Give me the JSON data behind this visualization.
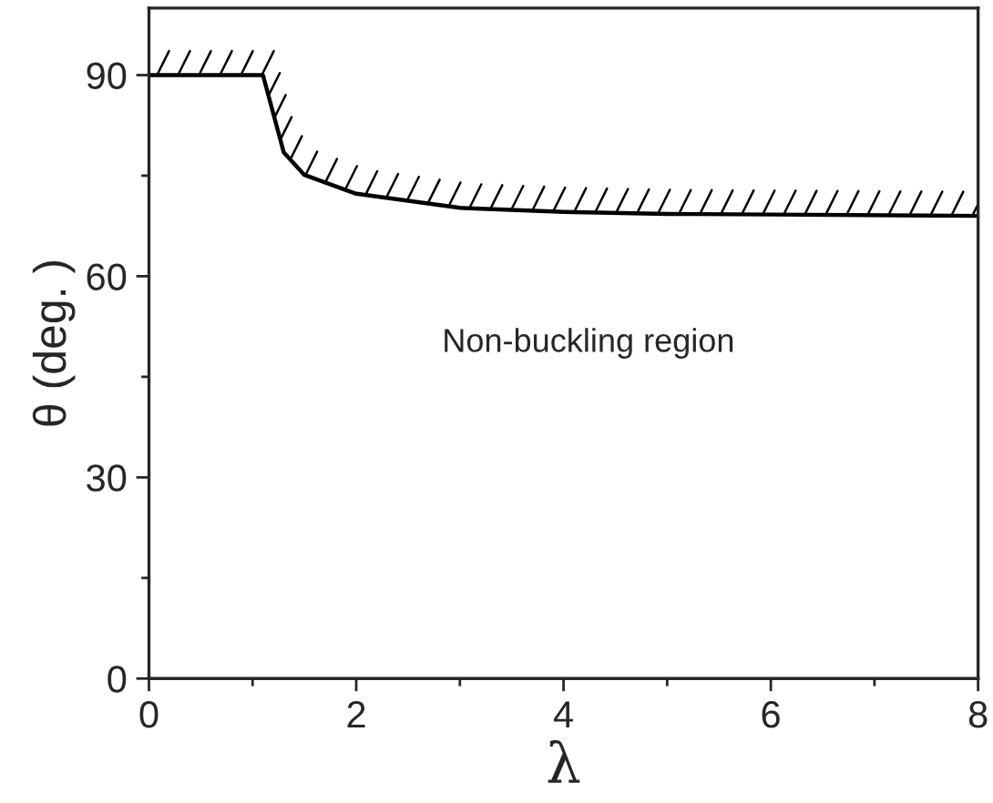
{
  "chart_data": {
    "type": "line",
    "xlabel": "λ",
    "ylabel": "θ (deg. )",
    "x": [
      0,
      1.1,
      1.3,
      1.5,
      2,
      3,
      4,
      5,
      6,
      8
    ],
    "series": [
      {
        "color": "#000000",
        "values": [
          90,
          90,
          78.5,
          75.1,
          72.3,
          70.2,
          69.6,
          69.3,
          69.2,
          69.0
        ]
      }
    ],
    "xlim": [
      0,
      8
    ],
    "xticks": [
      0,
      2,
      4,
      6,
      8
    ],
    "ylim": [
      0,
      100
    ],
    "yticks": [
      0,
      30,
      60,
      90
    ],
    "annotations": [
      "Non-buckling region"
    ],
    "grid": false,
    "legend": false,
    "marker": "none",
    "line_style": "solid"
  }
}
